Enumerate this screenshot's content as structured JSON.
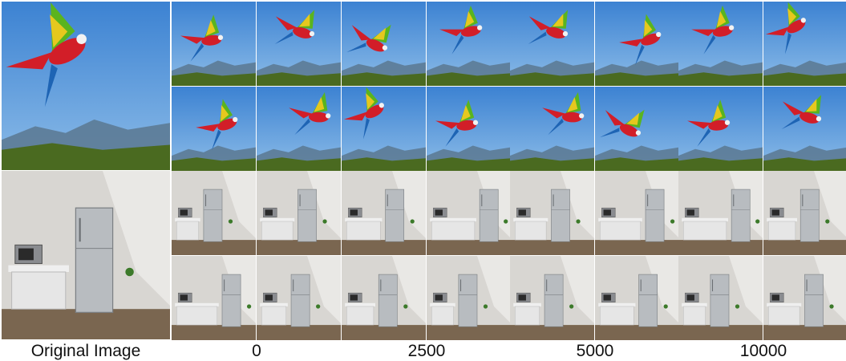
{
  "columns": [
    {
      "label": "Original Image"
    },
    {
      "label": "0"
    },
    {
      "label": "2500"
    },
    {
      "label": "5000"
    },
    {
      "label": "10000"
    }
  ],
  "rows": [
    {
      "subject": "parrot"
    },
    {
      "subject": "refrigerator"
    }
  ],
  "colors": {
    "sky": "#3c82d2",
    "mountain": "#5a7890",
    "grass": "#4a6a20",
    "parrot_red": "#d21e28",
    "parrot_green": "#5ab41e",
    "parrot_yellow": "#e6c81e",
    "parrot_blue": "#1e64b4",
    "wall": "#d8d6d2",
    "floor": "#7a6650",
    "steel": "#b8bcc0"
  }
}
